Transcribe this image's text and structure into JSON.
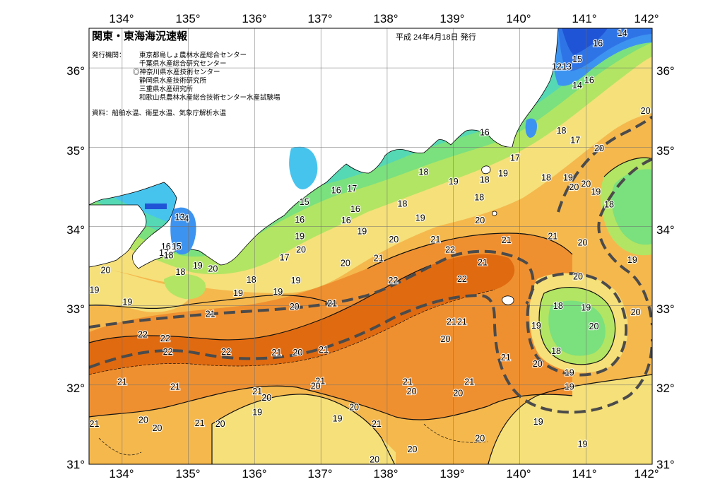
{
  "header": {
    "title": "関東・東海海況速報",
    "date": "平成 24年4月18日 発行",
    "publisher_label": "発行機関：",
    "publishers": [
      "東京都島しょ農林水産総合センター",
      "千葉県水産総合研究センター",
      "◎神奈川県水産技術センター",
      "静岡県水産技術研究所",
      "三重県水産研究所",
      "和歌山県農林水産総合技術センター水産試験場"
    ],
    "sources": "資料：船舶水温、衛星水温、気象庁解析水温"
  },
  "axes": {
    "lon_labels": [
      "134°",
      "135°",
      "136°",
      "137°",
      "138°",
      "139°",
      "140°",
      "141°",
      "142°"
    ],
    "lat_labels": [
      "36°",
      "35°",
      "34°",
      "33°",
      "32°",
      "31°"
    ]
  },
  "isotherm_labels": [
    {
      "text": "14",
      "lon": 141.55,
      "lat": 36.43
    },
    {
      "text": "16",
      "lon": 141.18,
      "lat": 36.3
    },
    {
      "text": "15",
      "lon": 140.87,
      "lat": 36.1
    },
    {
      "text": "12",
      "lon": 140.56,
      "lat": 36.01
    },
    {
      "text": "13",
      "lon": 140.71,
      "lat": 36.01
    },
    {
      "text": "14",
      "lon": 140.87,
      "lat": 35.77
    },
    {
      "text": "16",
      "lon": 141.05,
      "lat": 35.84
    },
    {
      "text": "20",
      "lon": 141.9,
      "lat": 35.45
    },
    {
      "text": "18",
      "lon": 140.63,
      "lat": 35.2
    },
    {
      "text": "17",
      "lon": 140.84,
      "lat": 35.08
    },
    {
      "text": "20",
      "lon": 141.2,
      "lat": 34.98
    },
    {
      "text": "16",
      "lon": 139.47,
      "lat": 35.18
    },
    {
      "text": "17",
      "lon": 139.93,
      "lat": 34.86
    },
    {
      "text": "19",
      "lon": 139.75,
      "lat": 34.66
    },
    {
      "text": "18",
      "lon": 140.4,
      "lat": 34.61
    },
    {
      "text": "19",
      "lon": 140.73,
      "lat": 34.61
    },
    {
      "text": "20",
      "lon": 140.82,
      "lat": 34.49
    },
    {
      "text": "20",
      "lon": 141.0,
      "lat": 34.53
    },
    {
      "text": "19",
      "lon": 141.15,
      "lat": 34.43
    },
    {
      "text": "18",
      "lon": 141.35,
      "lat": 34.27
    },
    {
      "text": "18",
      "lon": 138.55,
      "lat": 34.68
    },
    {
      "text": "19",
      "lon": 139.0,
      "lat": 34.56
    },
    {
      "text": "18",
      "lon": 139.47,
      "lat": 34.58
    },
    {
      "text": "18",
      "lon": 139.39,
      "lat": 34.36
    },
    {
      "text": "16",
      "lon": 137.23,
      "lat": 34.45
    },
    {
      "text": "17",
      "lon": 137.47,
      "lat": 34.47
    },
    {
      "text": "15",
      "lon": 136.75,
      "lat": 34.3
    },
    {
      "text": "16",
      "lon": 137.52,
      "lat": 34.21
    },
    {
      "text": "18",
      "lon": 138.23,
      "lat": 34.28
    },
    {
      "text": "16",
      "lon": 137.38,
      "lat": 34.07
    },
    {
      "text": "16",
      "lon": 136.68,
      "lat": 34.08
    },
    {
      "text": "19",
      "lon": 138.5,
      "lat": 34.1
    },
    {
      "text": "20",
      "lon": 139.4,
      "lat": 34.07
    },
    {
      "text": "19",
      "lon": 137.62,
      "lat": 33.93
    },
    {
      "text": "19",
      "lon": 136.68,
      "lat": 33.87
    },
    {
      "text": "20",
      "lon": 138.1,
      "lat": 33.83
    },
    {
      "text": "21",
      "lon": 138.73,
      "lat": 33.83
    },
    {
      "text": "21",
      "lon": 139.8,
      "lat": 33.82
    },
    {
      "text": "21",
      "lon": 140.5,
      "lat": 33.87
    },
    {
      "text": "22",
      "lon": 138.95,
      "lat": 33.7
    },
    {
      "text": "20",
      "lon": 140.95,
      "lat": 33.79
    },
    {
      "text": "20",
      "lon": 136.7,
      "lat": 33.7
    },
    {
      "text": "17",
      "lon": 136.45,
      "lat": 33.6
    },
    {
      "text": "20",
      "lon": 137.37,
      "lat": 33.53
    },
    {
      "text": "21",
      "lon": 137.87,
      "lat": 33.59
    },
    {
      "text": "21",
      "lon": 139.44,
      "lat": 33.54
    },
    {
      "text": "19",
      "lon": 141.7,
      "lat": 33.57
    },
    {
      "text": "13",
      "lon": 134.87,
      "lat": 34.11
    },
    {
      "text": "4",
      "lon": 134.97,
      "lat": 34.09
    },
    {
      "text": "16",
      "lon": 134.66,
      "lat": 33.74
    },
    {
      "text": "15",
      "lon": 134.82,
      "lat": 33.74
    },
    {
      "text": "17",
      "lon": 134.63,
      "lat": 33.66
    },
    {
      "text": "18",
      "lon": 134.7,
      "lat": 33.63
    },
    {
      "text": "18",
      "lon": 134.88,
      "lat": 33.42
    },
    {
      "text": "19",
      "lon": 135.14,
      "lat": 33.5
    },
    {
      "text": "20",
      "lon": 135.37,
      "lat": 33.46
    },
    {
      "text": "20",
      "lon": 133.75,
      "lat": 33.44
    },
    {
      "text": "18",
      "lon": 135.95,
      "lat": 33.32
    },
    {
      "text": "19",
      "lon": 136.35,
      "lat": 33.17
    },
    {
      "text": "19",
      "lon": 136.62,
      "lat": 33.31
    },
    {
      "text": "20",
      "lon": 140.88,
      "lat": 33.36
    },
    {
      "text": "22",
      "lon": 138.09,
      "lat": 33.31
    },
    {
      "text": "22",
      "lon": 139.13,
      "lat": 33.33
    },
    {
      "text": "19",
      "lon": 133.58,
      "lat": 33.19
    },
    {
      "text": "19",
      "lon": 134.08,
      "lat": 33.04
    },
    {
      "text": "19",
      "lon": 135.75,
      "lat": 33.15
    },
    {
      "text": "21",
      "lon": 137.17,
      "lat": 33.02
    },
    {
      "text": "20",
      "lon": 136.6,
      "lat": 32.98
    },
    {
      "text": "18",
      "lon": 140.58,
      "lat": 32.99
    },
    {
      "text": "19",
      "lon": 141.0,
      "lat": 32.97
    },
    {
      "text": "20",
      "lon": 141.75,
      "lat": 32.91
    },
    {
      "text": "21",
      "lon": 135.33,
      "lat": 32.89
    },
    {
      "text": "21",
      "lon": 138.97,
      "lat": 32.79
    },
    {
      "text": "21",
      "lon": 139.13,
      "lat": 32.79
    },
    {
      "text": "19",
      "lon": 140.25,
      "lat": 32.74
    },
    {
      "text": "20",
      "lon": 141.12,
      "lat": 32.73
    },
    {
      "text": "22",
      "lon": 134.31,
      "lat": 32.63
    },
    {
      "text": "22",
      "lon": 134.65,
      "lat": 32.58
    },
    {
      "text": "20",
      "lon": 138.88,
      "lat": 32.57
    },
    {
      "text": "21",
      "lon": 136.33,
      "lat": 32.4
    },
    {
      "text": "20",
      "lon": 136.65,
      "lat": 32.4
    },
    {
      "text": "21",
      "lon": 137.04,
      "lat": 32.44
    },
    {
      "text": "22",
      "lon": 134.69,
      "lat": 32.41
    },
    {
      "text": "22",
      "lon": 135.57,
      "lat": 32.41
    },
    {
      "text": "18",
      "lon": 140.55,
      "lat": 32.42
    },
    {
      "text": "21",
      "lon": 139.79,
      "lat": 32.34
    },
    {
      "text": "20",
      "lon": 140.27,
      "lat": 32.26
    },
    {
      "text": "19",
      "lon": 140.75,
      "lat": 32.15
    },
    {
      "text": "21",
      "lon": 134.0,
      "lat": 32.03
    },
    {
      "text": "21",
      "lon": 134.8,
      "lat": 31.97
    },
    {
      "text": "21",
      "lon": 136.99,
      "lat": 32.04
    },
    {
      "text": "20",
      "lon": 136.92,
      "lat": 31.98
    },
    {
      "text": "21",
      "lon": 138.31,
      "lat": 32.03
    },
    {
      "text": "20",
      "lon": 138.37,
      "lat": 31.91
    },
    {
      "text": "21",
      "lon": 139.24,
      "lat": 32.03
    },
    {
      "text": "20",
      "lon": 139.07,
      "lat": 31.89
    },
    {
      "text": "19",
      "lon": 140.75,
      "lat": 31.97
    },
    {
      "text": "21",
      "lon": 136.04,
      "lat": 31.91
    },
    {
      "text": "20",
      "lon": 136.18,
      "lat": 31.83
    },
    {
      "text": "20",
      "lon": 137.5,
      "lat": 31.71
    },
    {
      "text": "19",
      "lon": 136.04,
      "lat": 31.65
    },
    {
      "text": "19",
      "lon": 137.25,
      "lat": 31.57
    },
    {
      "text": "20",
      "lon": 134.32,
      "lat": 31.55
    },
    {
      "text": "20",
      "lon": 134.53,
      "lat": 31.45
    },
    {
      "text": "21",
      "lon": 133.58,
      "lat": 31.5
    },
    {
      "text": "21",
      "lon": 135.17,
      "lat": 31.51
    },
    {
      "text": "20",
      "lon": 135.48,
      "lat": 31.5
    },
    {
      "text": "21",
      "lon": 137.84,
      "lat": 31.5
    },
    {
      "text": "19",
      "lon": 140.28,
      "lat": 31.53
    },
    {
      "text": "20",
      "lon": 139.4,
      "lat": 31.32
    },
    {
      "text": "20",
      "lon": 138.38,
      "lat": 31.18
    },
    {
      "text": "19",
      "lon": 140.95,
      "lat": 31.25
    },
    {
      "text": "20",
      "lon": 137.81,
      "lat": 31.05
    }
  ],
  "colors": {
    "c12": "#1f54d6",
    "c13": "#2f74e6",
    "c14": "#3d93f0",
    "c15": "#47c4ee",
    "c16": "#55d8b4",
    "c17": "#7be07e",
    "c18": "#b2e563",
    "c19": "#f5e07a",
    "c20": "#f5b84d",
    "c21": "#ef9030",
    "c22": "#e06a10",
    "land": "#ffffff",
    "grid": "#6f6f6f",
    "current": "#4b4b4b"
  }
}
